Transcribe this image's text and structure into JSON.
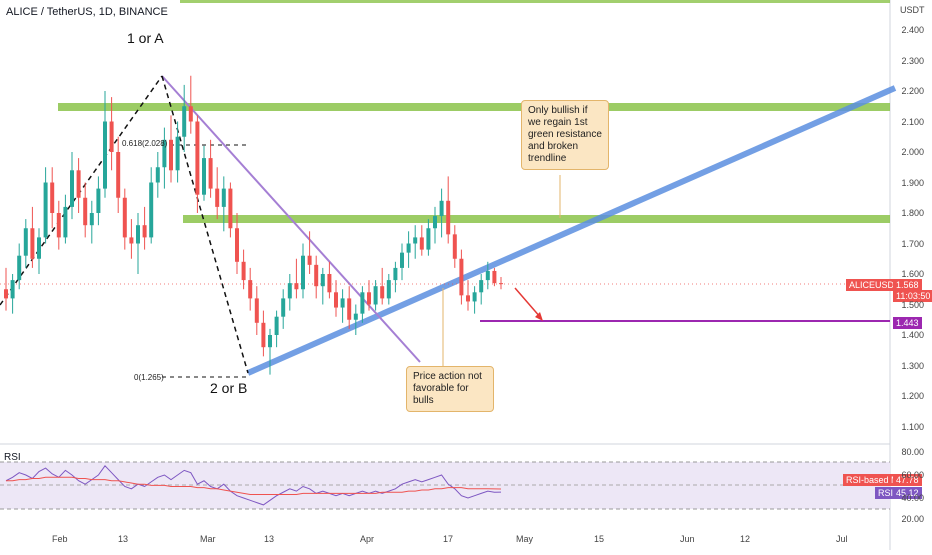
{
  "header": {
    "title": "ALICE / TetherUS, 1D, BINANCE",
    "axis_currency": "USDT"
  },
  "price_axis": [
    "2.400",
    "2.300",
    "2.200",
    "2.100",
    "2.000",
    "1.900",
    "1.800",
    "1.700",
    "1.600",
    "1.500",
    "1.400",
    "1.300",
    "1.200",
    "1.100"
  ],
  "time_axis": [
    "Feb",
    "13",
    "Mar",
    "13",
    "Apr",
    "17",
    "May",
    "15",
    "Jun",
    "12",
    "Jul"
  ],
  "tags": {
    "symbol_name": "ALICEUSDT",
    "price": "1.568",
    "countdown": "11:03:50",
    "target": "1.443",
    "rsi_ma_label": "RSI-based MA",
    "rsi_ma_value": "47.78",
    "rsi_label": "RSI",
    "rsi_value": "45.12"
  },
  "annotations": {
    "wave_a": "1 or A",
    "wave_b": "2 or B",
    "fib_618": "0.618(2.028)",
    "fib_0": "0(1.265)",
    "note_bullish": "Only bullish if we regain 1st green resistance and broken trendline",
    "note_bearish": "Price action not favorable for bulls"
  },
  "rsi_panel": {
    "title": "RSI",
    "axis": [
      "80.00",
      "60.00",
      "40.00",
      "20.00"
    ]
  },
  "colors": {
    "up": "#26a69a",
    "down": "#ef5350",
    "zone": "#8bc34a",
    "trendline": "#5b8fe0",
    "wave": "#111111",
    "purple": "#9c27b0",
    "rsi": "#7e57c2",
    "rsi_ma": "#ef5350"
  },
  "chart_data": {
    "type": "candlestick",
    "candles": [
      [
        1.55,
        1.62,
        1.48,
        1.52
      ],
      [
        1.52,
        1.6,
        1.47,
        1.58
      ],
      [
        1.58,
        1.7,
        1.55,
        1.66
      ],
      [
        1.66,
        1.78,
        1.62,
        1.75
      ],
      [
        1.75,
        1.82,
        1.62,
        1.65
      ],
      [
        1.65,
        1.75,
        1.6,
        1.72
      ],
      [
        1.72,
        1.95,
        1.7,
        1.9
      ],
      [
        1.9,
        1.95,
        1.75,
        1.8
      ],
      [
        1.8,
        1.84,
        1.68,
        1.72
      ],
      [
        1.72,
        1.86,
        1.7,
        1.82
      ],
      [
        1.82,
        2.0,
        1.78,
        1.94
      ],
      [
        1.94,
        1.98,
        1.8,
        1.85
      ],
      [
        1.85,
        1.9,
        1.72,
        1.76
      ],
      [
        1.76,
        1.84,
        1.7,
        1.8
      ],
      [
        1.8,
        1.92,
        1.76,
        1.88
      ],
      [
        1.88,
        2.2,
        1.85,
        2.1
      ],
      [
        2.1,
        2.18,
        1.94,
        2.0
      ],
      [
        2.0,
        2.05,
        1.8,
        1.85
      ],
      [
        1.85,
        1.88,
        1.68,
        1.72
      ],
      [
        1.72,
        1.78,
        1.65,
        1.7
      ],
      [
        1.7,
        1.8,
        1.6,
        1.76
      ],
      [
        1.76,
        1.82,
        1.68,
        1.72
      ],
      [
        1.72,
        1.95,
        1.7,
        1.9
      ],
      [
        1.9,
        2.0,
        1.85,
        1.95
      ],
      [
        1.95,
        2.08,
        1.88,
        2.04
      ],
      [
        2.04,
        2.12,
        1.9,
        1.94
      ],
      [
        1.94,
        2.1,
        1.9,
        2.05
      ],
      [
        2.05,
        2.22,
        2.0,
        2.15
      ],
      [
        2.15,
        2.25,
        2.06,
        2.1
      ],
      [
        2.1,
        2.12,
        1.8,
        1.86
      ],
      [
        1.86,
        2.02,
        1.84,
        1.98
      ],
      [
        1.98,
        2.04,
        1.85,
        1.88
      ],
      [
        1.88,
        1.95,
        1.78,
        1.82
      ],
      [
        1.82,
        1.92,
        1.74,
        1.88
      ],
      [
        1.88,
        1.9,
        1.72,
        1.75
      ],
      [
        1.75,
        1.8,
        1.6,
        1.64
      ],
      [
        1.64,
        1.68,
        1.55,
        1.58
      ],
      [
        1.58,
        1.62,
        1.48,
        1.52
      ],
      [
        1.52,
        1.56,
        1.4,
        1.44
      ],
      [
        1.44,
        1.48,
        1.33,
        1.36
      ],
      [
        1.36,
        1.42,
        1.27,
        1.4
      ],
      [
        1.4,
        1.48,
        1.36,
        1.46
      ],
      [
        1.46,
        1.55,
        1.42,
        1.52
      ],
      [
        1.52,
        1.6,
        1.48,
        1.57
      ],
      [
        1.57,
        1.65,
        1.52,
        1.55
      ],
      [
        1.55,
        1.7,
        1.52,
        1.66
      ],
      [
        1.66,
        1.74,
        1.6,
        1.63
      ],
      [
        1.63,
        1.66,
        1.52,
        1.56
      ],
      [
        1.56,
        1.62,
        1.5,
        1.6
      ],
      [
        1.6,
        1.64,
        1.52,
        1.54
      ],
      [
        1.54,
        1.58,
        1.46,
        1.49
      ],
      [
        1.49,
        1.55,
        1.44,
        1.52
      ],
      [
        1.52,
        1.56,
        1.42,
        1.45
      ],
      [
        1.45,
        1.5,
        1.4,
        1.47
      ],
      [
        1.47,
        1.56,
        1.44,
        1.54
      ],
      [
        1.54,
        1.58,
        1.48,
        1.5
      ],
      [
        1.5,
        1.58,
        1.48,
        1.56
      ],
      [
        1.56,
        1.62,
        1.5,
        1.52
      ],
      [
        1.52,
        1.6,
        1.5,
        1.58
      ],
      [
        1.58,
        1.64,
        1.54,
        1.62
      ],
      [
        1.62,
        1.7,
        1.58,
        1.67
      ],
      [
        1.67,
        1.74,
        1.62,
        1.7
      ],
      [
        1.7,
        1.76,
        1.65,
        1.72
      ],
      [
        1.72,
        1.76,
        1.66,
        1.68
      ],
      [
        1.68,
        1.78,
        1.66,
        1.75
      ],
      [
        1.75,
        1.82,
        1.7,
        1.79
      ],
      [
        1.79,
        1.88,
        1.72,
        1.84
      ],
      [
        1.84,
        1.92,
        1.7,
        1.73
      ],
      [
        1.73,
        1.76,
        1.62,
        1.65
      ],
      [
        1.65,
        1.68,
        1.5,
        1.53
      ],
      [
        1.53,
        1.58,
        1.48,
        1.51
      ],
      [
        1.51,
        1.56,
        1.47,
        1.54
      ],
      [
        1.54,
        1.6,
        1.5,
        1.58
      ],
      [
        1.58,
        1.64,
        1.55,
        1.61
      ],
      [
        1.61,
        1.62,
        1.56,
        1.57
      ],
      [
        1.57,
        1.59,
        1.55,
        1.568
      ]
    ],
    "rsi": [
      55,
      58,
      62,
      60,
      57,
      63,
      66,
      61,
      58,
      64,
      60,
      55,
      52,
      56,
      60,
      68,
      62,
      56,
      50,
      48,
      52,
      50,
      54,
      58,
      60,
      56,
      60,
      64,
      62,
      52,
      55,
      50,
      48,
      52,
      46,
      42,
      40,
      38,
      36,
      34,
      38,
      42,
      45,
      48,
      46,
      50,
      48,
      44,
      46,
      44,
      42,
      44,
      42,
      44,
      46,
      44,
      46,
      44,
      46,
      48,
      52,
      54,
      56,
      54,
      56,
      58,
      60,
      52,
      48,
      42,
      40,
      42,
      44,
      46,
      45,
      45.12
    ],
    "rsi_ma": [
      55,
      55,
      56,
      56,
      57,
      57,
      58,
      58,
      58,
      58,
      58,
      57,
      57,
      56,
      56,
      56,
      55,
      55,
      54,
      53,
      52,
      52,
      51,
      51,
      51,
      50,
      50,
      50,
      50,
      49,
      49,
      48,
      48,
      47,
      46,
      45,
      44,
      43,
      43,
      43,
      43,
      43,
      43,
      43,
      43,
      44,
      44,
      44,
      44,
      44,
      44,
      44,
      44,
      44,
      44,
      44,
      44,
      45,
      45,
      45,
      45,
      46,
      46,
      47,
      47,
      48,
      48,
      49,
      49,
      49,
      48,
      48,
      48,
      48,
      47.9,
      47.78
    ],
    "ylim": [
      1.05,
      2.46
    ]
  }
}
